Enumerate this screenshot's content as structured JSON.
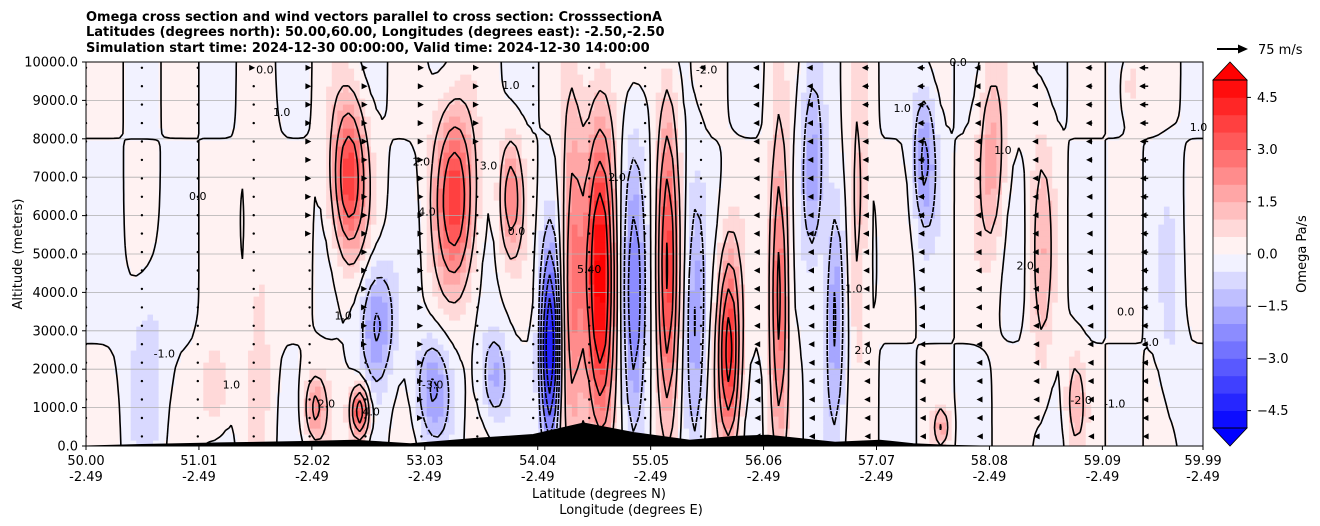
{
  "chart_data": {
    "type": "heatmap",
    "title_lines": [
      "Omega cross section and wind vectors parallel to cross section: CrosssectionA",
      "Latitudes (degrees north): 50.00,60.00, Longitudes (degrees east): -2.50,-2.50",
      "Simulation start time: 2024-12-30 00:00:00, Valid time: 2024-12-30 14:00:00"
    ],
    "xlabel_lat": "Latitude (degrees N)",
    "xlabel_lon": "Longitude (degrees E)",
    "ylabel": "Altitude (meters)",
    "xlim": [
      50.0,
      59.99
    ],
    "ylim": [
      0,
      10000
    ],
    "x_ticks": [
      {
        "lat": "50.00",
        "lon": "-2.49",
        "value": 50.0
      },
      {
        "lat": "51.01",
        "lon": "-2.49",
        "value": 51.01
      },
      {
        "lat": "52.02",
        "lon": "-2.49",
        "value": 52.02
      },
      {
        "lat": "53.03",
        "lon": "-2.49",
        "value": 53.03
      },
      {
        "lat": "54.04",
        "lon": "-2.49",
        "value": 54.04
      },
      {
        "lat": "55.05",
        "lon": "-2.49",
        "value": 55.05
      },
      {
        "lat": "56.06",
        "lon": "-2.49",
        "value": 56.06
      },
      {
        "lat": "57.07",
        "lon": "-2.49",
        "value": 57.07
      },
      {
        "lat": "58.08",
        "lon": "-2.49",
        "value": 58.08
      },
      {
        "lat": "59.09",
        "lon": "-2.49",
        "value": 59.09
      },
      {
        "lat": "59.99",
        "lon": "-2.49",
        "value": 59.99
      }
    ],
    "y_ticks": [
      {
        "label": "0.0",
        "value": 0
      },
      {
        "label": "1000.0",
        "value": 1000
      },
      {
        "label": "2000.0",
        "value": 2000
      },
      {
        "label": "3000.0",
        "value": 3000
      },
      {
        "label": "4000.0",
        "value": 4000
      },
      {
        "label": "5000.0",
        "value": 5000
      },
      {
        "label": "6000.0",
        "value": 6000
      },
      {
        "label": "7000.0",
        "value": 7000
      },
      {
        "label": "8000.0",
        "value": 8000
      },
      {
        "label": "9000.0",
        "value": 9000
      },
      {
        "label": "10000.0",
        "value": 10000
      }
    ],
    "colorbar": {
      "label": "Omega Pa/s",
      "min": -5.0,
      "max": 5.0,
      "step": 0.5,
      "extend": "both",
      "cmap": "bwr",
      "ticks": [
        {
          "label": "4.5",
          "value": 4.5
        },
        {
          "label": "3.0",
          "value": 3.0
        },
        {
          "label": "1.5",
          "value": 1.5
        },
        {
          "label": "0.0",
          "value": 0.0
        },
        {
          "label": "−1.5",
          "value": -1.5
        },
        {
          "label": "−3.0",
          "value": -3.0
        },
        {
          "label": "−4.5",
          "value": -4.5
        }
      ]
    },
    "quiver_key": {
      "label": "75 m/s",
      "speed": 75
    },
    "omega_features": [
      {
        "lat": 50.55,
        "alt_center": 2200,
        "alt_halfwidth": 2500,
        "lat_halfwidth": 0.18,
        "value": -0.8
      },
      {
        "lat": 51.15,
        "alt_center": 1500,
        "alt_halfwidth": 1200,
        "lat_halfwidth": 0.12,
        "value": 1.2
      },
      {
        "lat": 51.55,
        "alt_center": 4000,
        "alt_halfwidth": 4500,
        "lat_halfwidth": 0.12,
        "value": 0.8
      },
      {
        "lat": 52.05,
        "alt_center": 1000,
        "alt_halfwidth": 900,
        "lat_halfwidth": 0.1,
        "value": 2.2
      },
      {
        "lat": 52.6,
        "alt_center": 3200,
        "alt_halfwidth": 1600,
        "lat_halfwidth": 0.15,
        "value": -2.2
      },
      {
        "lat": 52.35,
        "alt_center": 7000,
        "alt_halfwidth": 2000,
        "lat_halfwidth": 0.15,
        "value": 4.0
      },
      {
        "lat": 52.45,
        "alt_center": 900,
        "alt_halfwidth": 700,
        "lat_halfwidth": 0.08,
        "value": 4.0
      },
      {
        "lat": 53.1,
        "alt_center": 1500,
        "alt_halfwidth": 1300,
        "lat_halfwidth": 0.15,
        "value": -2.0
      },
      {
        "lat": 53.3,
        "alt_center": 6500,
        "alt_halfwidth": 2300,
        "lat_halfwidth": 0.18,
        "value": 3.8
      },
      {
        "lat": 53.8,
        "alt_center": 6500,
        "alt_halfwidth": 1500,
        "lat_halfwidth": 0.1,
        "value": 2.5
      },
      {
        "lat": 53.65,
        "alt_center": 1800,
        "alt_halfwidth": 1200,
        "lat_halfwidth": 0.12,
        "value": -1.8
      },
      {
        "lat": 54.15,
        "alt_center": 2500,
        "alt_halfwidth": 2500,
        "lat_halfwidth": 0.08,
        "value": -5.2
      },
      {
        "lat": 54.35,
        "alt_center": 4500,
        "alt_halfwidth": 4500,
        "lat_halfwidth": 0.1,
        "value": 2.8
      },
      {
        "lat": 54.6,
        "alt_center": 4200,
        "alt_halfwidth": 4200,
        "lat_halfwidth": 0.13,
        "value": 5.2
      },
      {
        "lat": 54.9,
        "alt_center": 3500,
        "alt_halfwidth": 4000,
        "lat_halfwidth": 0.1,
        "value": -2.5
      },
      {
        "lat": 55.2,
        "alt_center": 4500,
        "alt_halfwidth": 4500,
        "lat_halfwidth": 0.09,
        "value": 3.8
      },
      {
        "lat": 55.45,
        "alt_center": 3000,
        "alt_halfwidth": 3500,
        "lat_halfwidth": 0.08,
        "value": -2.0
      },
      {
        "lat": 55.75,
        "alt_center": 2500,
        "alt_halfwidth": 2500,
        "lat_halfwidth": 0.1,
        "value": 4.5
      },
      {
        "lat": 56.2,
        "alt_center": 4200,
        "alt_halfwidth": 3800,
        "lat_halfwidth": 0.08,
        "value": 3.5
      },
      {
        "lat": 56.5,
        "alt_center": 7000,
        "alt_halfwidth": 2500,
        "lat_halfwidth": 0.1,
        "value": -2.0
      },
      {
        "lat": 56.7,
        "alt_center": 3500,
        "alt_halfwidth": 3000,
        "lat_halfwidth": 0.08,
        "value": -2.2
      },
      {
        "lat": 56.9,
        "alt_center": 6000,
        "alt_halfwidth": 3500,
        "lat_halfwidth": 0.09,
        "value": 1.5
      },
      {
        "lat": 57.5,
        "alt_center": 7500,
        "alt_halfwidth": 1800,
        "lat_halfwidth": 0.1,
        "value": -2.2
      },
      {
        "lat": 57.65,
        "alt_center": 500,
        "alt_halfwidth": 500,
        "lat_halfwidth": 0.06,
        "value": 1.8
      },
      {
        "lat": 58.1,
        "alt_center": 7500,
        "alt_halfwidth": 2500,
        "lat_halfwidth": 0.12,
        "value": 1.8
      },
      {
        "lat": 58.55,
        "alt_center": 5000,
        "alt_halfwidth": 3500,
        "lat_halfwidth": 0.1,
        "value": 1.3
      },
      {
        "lat": 58.85,
        "alt_center": 1200,
        "alt_halfwidth": 1200,
        "lat_halfwidth": 0.08,
        "value": 1.5
      },
      {
        "lat": 59.35,
        "alt_center": 9500,
        "alt_halfwidth": 800,
        "lat_halfwidth": 0.08,
        "value": 1.0
      },
      {
        "lat": 59.7,
        "alt_center": 3500,
        "alt_halfwidth": 3000,
        "lat_halfwidth": 0.1,
        "value": -0.6
      }
    ],
    "wind_profile": [
      {
        "lat": 50.0,
        "u": 3
      },
      {
        "lat": 51.5,
        "u": 5
      },
      {
        "lat": 53.0,
        "u": 8
      },
      {
        "lat": 54.5,
        "u": 0
      },
      {
        "lat": 55.5,
        "u": -5
      },
      {
        "lat": 56.5,
        "u": -20
      },
      {
        "lat": 57.5,
        "u": -25
      },
      {
        "lat": 58.5,
        "u": -15
      },
      {
        "lat": 59.5,
        "u": -30
      },
      {
        "lat": 59.99,
        "u": -35
      }
    ],
    "terrain": [
      {
        "lat": 50.0,
        "alt": 0
      },
      {
        "lat": 50.5,
        "alt": 40
      },
      {
        "lat": 51.2,
        "alt": 80
      },
      {
        "lat": 52.0,
        "alt": 120
      },
      {
        "lat": 52.4,
        "alt": 150
      },
      {
        "lat": 52.9,
        "alt": 60
      },
      {
        "lat": 53.5,
        "alt": 200
      },
      {
        "lat": 54.0,
        "alt": 300
      },
      {
        "lat": 54.45,
        "alt": 600
      },
      {
        "lat": 54.9,
        "alt": 350
      },
      {
        "lat": 55.4,
        "alt": 150
      },
      {
        "lat": 55.8,
        "alt": 250
      },
      {
        "lat": 56.1,
        "alt": 280
      },
      {
        "lat": 56.7,
        "alt": 100
      },
      {
        "lat": 57.1,
        "alt": 150
      },
      {
        "lat": 57.4,
        "alt": 60
      },
      {
        "lat": 57.7,
        "alt": 20
      },
      {
        "lat": 58.0,
        "alt": 0
      },
      {
        "lat": 59.99,
        "alt": 0
      }
    ],
    "contour_labels": [
      {
        "text": "-1.0",
        "lat": 50.7,
        "alt": 2300
      },
      {
        "text": "1.0",
        "lat": 51.3,
        "alt": 1500
      },
      {
        "text": "0.0",
        "lat": 51.0,
        "alt": 6400
      },
      {
        "text": "1.0",
        "lat": 51.75,
        "alt": 8600
      },
      {
        "text": "0.0",
        "lat": 51.6,
        "alt": 9700
      },
      {
        "text": "1.0",
        "lat": 52.3,
        "alt": 3300
      },
      {
        "text": "2.0",
        "lat": 52.15,
        "alt": 1000
      },
      {
        "text": "4.0",
        "lat": 52.55,
        "alt": 800
      },
      {
        "text": "-3.0",
        "lat": 53.1,
        "alt": 1500
      },
      {
        "text": "2.0",
        "lat": 53.0,
        "alt": 7300
      },
      {
        "text": "4.0",
        "lat": 53.05,
        "alt": 6000
      },
      {
        "text": "3.0",
        "lat": 53.6,
        "alt": 7200
      },
      {
        "text": "0.0",
        "lat": 53.85,
        "alt": 5500
      },
      {
        "text": "1.0",
        "lat": 53.8,
        "alt": 9300
      },
      {
        "text": "5.40",
        "lat": 54.5,
        "alt": 4500
      },
      {
        "text": "2.0",
        "lat": 54.75,
        "alt": 6900
      },
      {
        "text": "-2.0",
        "lat": 55.55,
        "alt": 9700
      },
      {
        "text": "-1.0",
        "lat": 56.85,
        "alt": 4000
      },
      {
        "text": "2.0",
        "lat": 56.95,
        "alt": 2400
      },
      {
        "text": "1.0",
        "lat": 57.3,
        "alt": 8700
      },
      {
        "text": "0.0",
        "lat": 57.8,
        "alt": 9900
      },
      {
        "text": "1.0",
        "lat": 58.2,
        "alt": 7600
      },
      {
        "text": "2.0",
        "lat": 58.4,
        "alt": 4600
      },
      {
        "text": "0.0",
        "lat": 59.3,
        "alt": 3400
      },
      {
        "text": "-1.0",
        "lat": 59.5,
        "alt": 2600
      },
      {
        "text": "1.0",
        "lat": 59.95,
        "alt": 8200
      },
      {
        "text": "-1.0",
        "lat": 59.2,
        "alt": 1000
      },
      {
        "text": "-2.0",
        "lat": 58.9,
        "alt": 1100
      }
    ]
  }
}
